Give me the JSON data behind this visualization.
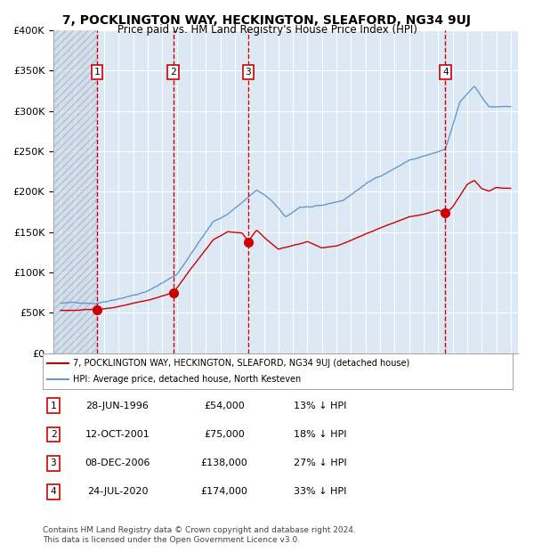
{
  "title": "7, POCKLINGTON WAY, HECKINGTON, SLEAFORD, NG34 9UJ",
  "subtitle": "Price paid vs. HM Land Registry's House Price Index (HPI)",
  "sale_dates": [
    "1996-06-28",
    "2001-10-12",
    "2006-12-08",
    "2020-07-24"
  ],
  "sale_prices": [
    54000,
    75000,
    138000,
    174000
  ],
  "sale_labels": [
    "1",
    "2",
    "3",
    "4"
  ],
  "sale_info": [
    {
      "num": "1",
      "date": "28-JUN-1996",
      "price": "£54,000",
      "pct": "13% ↓ HPI"
    },
    {
      "num": "2",
      "date": "12-OCT-2001",
      "price": "£75,000",
      "pct": "18% ↓ HPI"
    },
    {
      "num": "3",
      "date": "08-DEC-2006",
      "price": "£138,000",
      "pct": "27% ↓ HPI"
    },
    {
      "num": "4",
      "date": "24-JUL-2020",
      "price": "£174,000",
      "pct": "33% ↓ HPI"
    }
  ],
  "legend_line1": "7, POCKLINGTON WAY, HECKINGTON, SLEAFORD, NG34 9UJ (detached house)",
  "legend_line2": "HPI: Average price, detached house, North Kesteven",
  "footer": "Contains HM Land Registry data © Crown copyright and database right 2024.\nThis data is licensed under the Open Government Licence v3.0.",
  "price_line_color": "#cc0000",
  "hpi_line_color": "#6699cc",
  "vline_color": "#cc0000",
  "background_color": "#dce9f5",
  "plot_bg_color": "#dce9f5",
  "hatch_color": "#b0c4de",
  "ylim": [
    0,
    400000
  ],
  "yticks": [
    0,
    50000,
    100000,
    150000,
    200000,
    250000,
    300000,
    350000,
    400000
  ],
  "xlim_start": 1993.5,
  "xlim_end": 2025.5
}
